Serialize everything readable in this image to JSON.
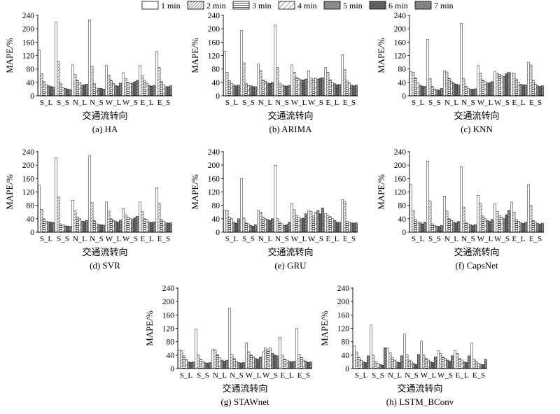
{
  "legend": {
    "entries": [
      {
        "label": "1 min",
        "pattern": "white"
      },
      {
        "label": "2 min",
        "pattern": "diag-dense"
      },
      {
        "label": "3 min",
        "pattern": "horizontal"
      },
      {
        "label": "4 min",
        "pattern": "diag-sparse"
      },
      {
        "label": "5 min",
        "pattern": "solid-gray"
      },
      {
        "label": "6 min",
        "pattern": "dark-gray"
      },
      {
        "label": "7 min",
        "pattern": "diag-dark"
      }
    ]
  },
  "chart_data": [
    {
      "type": "bar",
      "caption": "(a) HA",
      "xlabel": "交通流转向",
      "ylabel": "MAPE/%",
      "ylim": [
        0,
        240
      ],
      "yticks": [
        0,
        40,
        80,
        120,
        160,
        200,
        240
      ],
      "categories": [
        "S_L",
        "S_S",
        "N_L",
        "N_S",
        "W_L",
        "W_S",
        "E_L",
        "E_S"
      ],
      "series": [
        {
          "name": "1 min",
          "values": [
            137,
            220,
            92,
            227,
            90,
            69,
            90,
            132
          ]
        },
        {
          "name": "2 min",
          "values": [
            66,
            103,
            63,
            88,
            62,
            52,
            60,
            85
          ]
        },
        {
          "name": "3 min",
          "values": [
            42,
            37,
            46,
            37,
            46,
            41,
            44,
            43
          ]
        },
        {
          "name": "4 min",
          "values": [
            33,
            24,
            39,
            23,
            37,
            36,
            37,
            33
          ]
        },
        {
          "name": "5 min",
          "values": [
            30,
            22,
            32,
            22,
            31,
            38,
            31,
            28
          ]
        },
        {
          "name": "6 min",
          "values": [
            28,
            20,
            33,
            22,
            29,
            42,
            29,
            27
          ]
        },
        {
          "name": "7 min",
          "values": [
            26,
            19,
            35,
            20,
            38,
            46,
            31,
            30
          ]
        }
      ]
    },
    {
      "type": "bar",
      "caption": "(b) ARIMA",
      "xlabel": "交通流转向",
      "ylabel": "MAPE/%",
      "ylim": [
        0,
        240
      ],
      "yticks": [
        0,
        40,
        80,
        120,
        160,
        200,
        240
      ],
      "categories": [
        "S_L",
        "S_S",
        "N_L",
        "N_S",
        "W_L",
        "W_S",
        "E_L",
        "E_S"
      ],
      "series": [
        {
          "name": "1 min",
          "values": [
            132,
            195,
            95,
            211,
            92,
            75,
            84,
            123
          ]
        },
        {
          "name": "2 min",
          "values": [
            70,
            98,
            75,
            84,
            70,
            53,
            70,
            78
          ]
        },
        {
          "name": "3 min",
          "values": [
            45,
            37,
            48,
            38,
            55,
            50,
            48,
            44
          ]
        },
        {
          "name": "4 min",
          "values": [
            36,
            30,
            43,
            33,
            51,
            53,
            40,
            38
          ]
        },
        {
          "name": "5 min",
          "values": [
            32,
            30,
            38,
            30,
            48,
            50,
            36,
            32
          ]
        },
        {
          "name": "6 min",
          "values": [
            30,
            28,
            37,
            29,
            47,
            52,
            33,
            30
          ]
        },
        {
          "name": "7 min",
          "values": [
            32,
            27,
            40,
            31,
            50,
            54,
            34,
            32
          ]
        }
      ]
    },
    {
      "type": "bar",
      "caption": "(c) KNN",
      "xlabel": "交通流转向",
      "ylabel": "MAPE/%",
      "ylim": [
        0,
        240
      ],
      "yticks": [
        0,
        40,
        80,
        120,
        160,
        200,
        240
      ],
      "categories": [
        "S_L",
        "S_S",
        "N_L",
        "N_S",
        "W_L",
        "W_S",
        "E_L",
        "E_S"
      ],
      "series": [
        {
          "name": "1 min",
          "values": [
            72,
            168,
            75,
            216,
            90,
            73,
            68,
            100
          ]
        },
        {
          "name": "2 min",
          "values": [
            70,
            52,
            71,
            52,
            68,
            68,
            68,
            92
          ]
        },
        {
          "name": "3 min",
          "values": [
            53,
            28,
            52,
            28,
            47,
            63,
            50,
            45
          ]
        },
        {
          "name": "4 min",
          "values": [
            38,
            20,
            42,
            22,
            42,
            62,
            40,
            35
          ]
        },
        {
          "name": "5 min",
          "values": [
            32,
            18,
            38,
            20,
            38,
            58,
            35,
            30
          ]
        },
        {
          "name": "6 min",
          "values": [
            29,
            17,
            35,
            20,
            39,
            66,
            32,
            28
          ]
        },
        {
          "name": "7 min",
          "values": [
            28,
            22,
            33,
            21,
            42,
            70,
            33,
            30
          ]
        }
      ]
    },
    {
      "type": "bar",
      "caption": "(d) SVR",
      "xlabel": "交通流转向",
      "ylabel": "MAPE/%",
      "ylim": [
        0,
        240
      ],
      "yticks": [
        0,
        40,
        80,
        120,
        160,
        200,
        240
      ],
      "categories": [
        "S_L",
        "S_S",
        "N_L",
        "N_S",
        "W_L",
        "W_S",
        "E_L",
        "E_S"
      ],
      "series": [
        {
          "name": "1 min",
          "values": [
            140,
            222,
            95,
            228,
            90,
            71,
            90,
            133
          ]
        },
        {
          "name": "2 min",
          "values": [
            68,
            105,
            64,
            88,
            63,
            52,
            61,
            86
          ]
        },
        {
          "name": "3 min",
          "values": [
            40,
            25,
            45,
            35,
            40,
            45,
            40,
            38
          ]
        },
        {
          "name": "4 min",
          "values": [
            33,
            22,
            40,
            25,
            35,
            40,
            38,
            33
          ]
        },
        {
          "name": "5 min",
          "values": [
            31,
            19,
            33,
            23,
            32,
            38,
            30,
            28
          ]
        },
        {
          "name": "6 min",
          "values": [
            30,
            18,
            32,
            22,
            30,
            43,
            29,
            27
          ]
        },
        {
          "name": "7 min",
          "values": [
            29,
            18,
            35,
            21,
            36,
            47,
            31,
            28
          ]
        }
      ]
    },
    {
      "type": "bar",
      "caption": "(e) GRU",
      "xlabel": "交通流转向",
      "ylabel": "MAPE/%",
      "ylim": [
        0,
        240
      ],
      "yticks": [
        0,
        40,
        80,
        120,
        160,
        200,
        240
      ],
      "categories": [
        "S_L",
        "S_S",
        "N_L",
        "N_S",
        "W_L",
        "W_S",
        "E_L",
        "E_S"
      ],
      "series": [
        {
          "name": "1 min",
          "values": [
            65,
            160,
            65,
            200,
            85,
            65,
            55,
            97
          ]
        },
        {
          "name": "2 min",
          "values": [
            66,
            42,
            60,
            40,
            67,
            62,
            50,
            92
          ]
        },
        {
          "name": "3 min",
          "values": [
            45,
            28,
            45,
            30,
            50,
            50,
            46,
            32
          ]
        },
        {
          "name": "4 min",
          "values": [
            40,
            25,
            40,
            25,
            45,
            60,
            40,
            30
          ]
        },
        {
          "name": "5 min",
          "values": [
            30,
            20,
            38,
            20,
            40,
            65,
            35,
            28
          ]
        },
        {
          "name": "6 min",
          "values": [
            27,
            18,
            35,
            22,
            42,
            55,
            30,
            27
          ]
        },
        {
          "name": "7 min",
          "values": [
            40,
            22,
            40,
            30,
            55,
            72,
            30,
            28
          ]
        }
      ]
    },
    {
      "type": "bar",
      "caption": "(f) CapsNet",
      "xlabel": "交通流转向",
      "ylabel": "MAPE/%",
      "ylim": [
        0,
        240
      ],
      "yticks": [
        0,
        40,
        80,
        120,
        160,
        200,
        240
      ],
      "categories": [
        "S_L",
        "S_S",
        "N_L",
        "N_S",
        "W_L",
        "W_S",
        "E_L",
        "E_S"
      ],
      "series": [
        {
          "name": "1 min",
          "values": [
            142,
            212,
            108,
            195,
            110,
            85,
            90,
            142
          ]
        },
        {
          "name": "2 min",
          "values": [
            65,
            93,
            63,
            75,
            85,
            62,
            60,
            80
          ]
        },
        {
          "name": "3 min",
          "values": [
            38,
            25,
            40,
            30,
            48,
            50,
            38,
            35
          ]
        },
        {
          "name": "4 min",
          "values": [
            30,
            20,
            35,
            25,
            40,
            45,
            32,
            30
          ]
        },
        {
          "name": "5 min",
          "values": [
            28,
            18,
            30,
            22,
            35,
            40,
            28,
            26
          ]
        },
        {
          "name": "6 min",
          "values": [
            25,
            17,
            28,
            20,
            32,
            52,
            26,
            24
          ]
        },
        {
          "name": "7 min",
          "values": [
            30,
            20,
            32,
            23,
            38,
            65,
            30,
            27
          ]
        }
      ]
    },
    {
      "type": "bar",
      "caption": "(g) STAWnet",
      "xlabel": "交通流转向",
      "ylabel": "MAPE/%",
      "ylim": [
        0,
        240
      ],
      "yticks": [
        0,
        40,
        80,
        120,
        160,
        200,
        240
      ],
      "categories": [
        "S_L",
        "S_S",
        "N_L",
        "N_S",
        "W_L",
        "W_S",
        "E_L",
        "E_S"
      ],
      "series": [
        {
          "name": "1 min",
          "values": [
            55,
            117,
            57,
            180,
            77,
            50,
            93,
            120
          ]
        },
        {
          "name": "2 min",
          "values": [
            53,
            40,
            56,
            42,
            50,
            62,
            40,
            42
          ]
        },
        {
          "name": "3 min",
          "values": [
            38,
            27,
            42,
            30,
            40,
            55,
            28,
            33
          ]
        },
        {
          "name": "4 min",
          "values": [
            27,
            22,
            32,
            22,
            35,
            62,
            25,
            25
          ]
        },
        {
          "name": "5 min",
          "values": [
            20,
            17,
            25,
            18,
            30,
            45,
            22,
            22
          ]
        },
        {
          "name": "6 min",
          "values": [
            18,
            16,
            22,
            16,
            28,
            40,
            20,
            18
          ]
        },
        {
          "name": "7 min",
          "values": [
            20,
            18,
            25,
            18,
            35,
            38,
            22,
            20
          ]
        }
      ]
    },
    {
      "type": "bar",
      "caption": "(h) LSTM_BConv",
      "xlabel": "交通流转向",
      "ylabel": "MAPE/%",
      "ylim": [
        0,
        240
      ],
      "yticks": [
        0,
        40,
        80,
        120,
        160,
        200,
        240
      ],
      "categories": [
        "S_L",
        "S_S",
        "N_L",
        "N_S",
        "W_L",
        "W_S",
        "E_L",
        "E_S"
      ],
      "series": [
        {
          "name": "1 min",
          "values": [
            68,
            130,
            62,
            103,
            82,
            53,
            53,
            76
          ]
        },
        {
          "name": "2 min",
          "values": [
            50,
            40,
            47,
            42,
            40,
            45,
            45,
            28
          ]
        },
        {
          "name": "3 min",
          "values": [
            33,
            20,
            32,
            25,
            30,
            35,
            30,
            20
          ]
        },
        {
          "name": "4 min",
          "values": [
            25,
            15,
            25,
            20,
            25,
            30,
            25,
            15
          ]
        },
        {
          "name": "5 min",
          "values": [
            20,
            12,
            20,
            15,
            20,
            25,
            20,
            13
          ]
        },
        {
          "name": "6 min",
          "values": [
            18,
            10,
            18,
            12,
            18,
            22,
            18,
            12
          ]
        },
        {
          "name": "7 min",
          "values": [
            38,
            62,
            38,
            42,
            35,
            38,
            38,
            28
          ]
        }
      ]
    }
  ]
}
